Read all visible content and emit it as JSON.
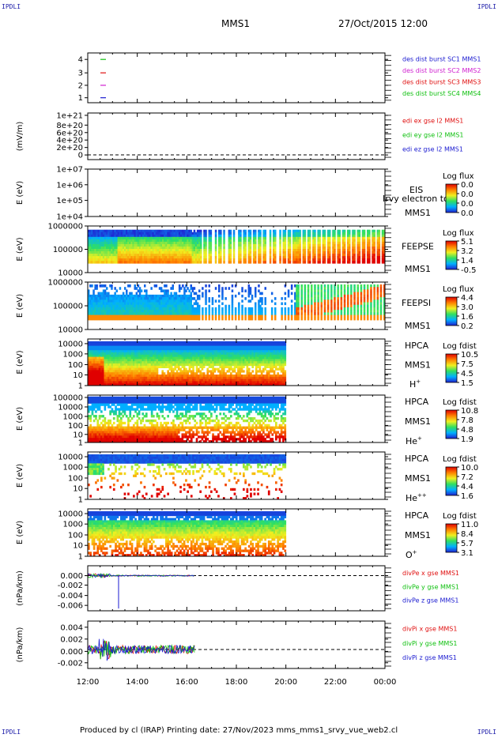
{
  "corner_label": "IPDLI",
  "header": {
    "mission": "MMS1",
    "datetime": "27/Oct/2015 12:00"
  },
  "footer": {
    "text": "Produced by cl (IRAP)   Printing date: 27/Nov/2023   mms_mms1_srvy_vue_web2.cl"
  },
  "chart_data": {
    "type": "heatmap",
    "x_tick_labels": [
      "12:00",
      "14:00",
      "16:00",
      "18:00",
      "20:00",
      "22:00",
      "00:00"
    ],
    "panels": [
      {
        "id": "burst",
        "type": "line",
        "ytick_labels": [
          "4",
          "3",
          "2",
          "1"
        ],
        "series": [
          {
            "name": "des dist burst SC1 MMS1",
            "color": "#1a1ad0"
          },
          {
            "name": "des dist burst SC2 MMS2",
            "color": "#d020d0"
          },
          {
            "name": "des dist burst SC3 MMS3",
            "color": "#e01010"
          },
          {
            "name": "des dist burst SC4 MMS4",
            "color": "#10c010"
          }
        ]
      },
      {
        "id": "edi",
        "type": "line",
        "ylabel": "(mV/m)",
        "ytick_labels": [
          "1e+21",
          "8e+20",
          "6e+20",
          "4e+20",
          "2e+20",
          "0"
        ],
        "series": [
          {
            "name": "edi ex gse l2 MMS1",
            "color": "#e01010"
          },
          {
            "name": "edi ey gse l2 MMS1",
            "color": "#10c010"
          },
          {
            "name": "edi ez gse l2 MMS1",
            "color": "#1a1ad0"
          }
        ]
      },
      {
        "id": "eis",
        "type": "heatmap",
        "ylabel": "E (eV)",
        "ytick_labels": [
          "1e+07",
          "1e+06",
          "1e+05",
          "1e+04"
        ],
        "instrument": "EIS",
        "species": "Irvy electron to",
        "spacecraft": "MMS1",
        "colorbar": {
          "title": "Log flux",
          "ticks": [
            "0.0",
            "0.0",
            "0.0",
            "0.0"
          ]
        }
      },
      {
        "id": "feepse",
        "type": "heatmap",
        "ylabel": "E (eV)",
        "ytick_labels": [
          "1000000",
          "100000",
          "10000"
        ],
        "instrument": "FEEPSE",
        "spacecraft": "MMS1",
        "colorbar": {
          "title": "Log flux",
          "ticks": [
            "5.1",
            "3.2",
            "1.4",
            "-0.5"
          ]
        }
      },
      {
        "id": "feepsi",
        "type": "heatmap",
        "ylabel": "E (eV)",
        "ytick_labels": [
          "1000000",
          "100000",
          "10000"
        ],
        "instrument": "FEEPSI",
        "spacecraft": "MMS1",
        "colorbar": {
          "title": "Log flux",
          "ticks": [
            "4.4",
            "3.0",
            "1.6",
            "0.2"
          ]
        }
      },
      {
        "id": "hpca_h",
        "type": "heatmap",
        "ylabel": "E (eV)",
        "ytick_labels": [
          "10000",
          "1000",
          "100",
          "10",
          "1"
        ],
        "instrument": "HPCA",
        "spacecraft": "MMS1",
        "species": "H",
        "species_sup": "+",
        "colorbar": {
          "title": "Log fdist",
          "ticks": [
            "10.5",
            "7.5",
            "4.5",
            "1.5"
          ]
        }
      },
      {
        "id": "hpca_he",
        "type": "heatmap",
        "ylabel": "E (eV)",
        "ytick_labels": [
          "100000",
          "10000",
          "1000",
          "100",
          "10",
          "1"
        ],
        "instrument": "HPCA",
        "spacecraft": "MMS1",
        "species": "He",
        "species_sup": "+",
        "colorbar": {
          "title": "Log fdist",
          "ticks": [
            "10.8",
            "7.8",
            "4.8",
            "1.9"
          ]
        }
      },
      {
        "id": "hpca_hepp",
        "type": "heatmap",
        "ylabel": "E (eV)",
        "ytick_labels": [
          "10000",
          "1000",
          "100",
          "10",
          "1"
        ],
        "instrument": "HPCA",
        "spacecraft": "MMS1",
        "species": "He",
        "species_sup": "++",
        "colorbar": {
          "title": "Log fdist",
          "ticks": [
            "10.0",
            "7.2",
            "4.4",
            "1.6"
          ]
        }
      },
      {
        "id": "hpca_o",
        "type": "heatmap",
        "ylabel": "E (eV)",
        "ytick_labels": [
          "10000",
          "1000",
          "100",
          "10",
          "1"
        ],
        "instrument": "HPCA",
        "spacecraft": "MMS1",
        "species": "O",
        "species_sup": "+",
        "colorbar": {
          "title": "Log fdist",
          "ticks": [
            "11.0",
            "8.4",
            "5.7",
            "3.1"
          ]
        }
      },
      {
        "id": "divpe",
        "type": "line",
        "ylabel": "(nPa/km)",
        "ytick_labels": [
          "0.000",
          "-0.002",
          "-0.004",
          "-0.006"
        ],
        "series": [
          {
            "name": "divPe x gse MMS1",
            "color": "#e01010"
          },
          {
            "name": "divPe y gse MMS1",
            "color": "#10c010"
          },
          {
            "name": "divPe z gse MMS1",
            "color": "#1a1ad0"
          }
        ]
      },
      {
        "id": "divpi",
        "type": "line",
        "ylabel": "(nPa/km)",
        "ytick_labels": [
          "0.004",
          "0.002",
          "0.000",
          "-0.002"
        ],
        "series": [
          {
            "name": "divPi x gse MMS1",
            "color": "#e01010"
          },
          {
            "name": "divPi y gse MMS1",
            "color": "#10c010"
          },
          {
            "name": "divPi z gse MMS1",
            "color": "#1a1ad0"
          }
        ]
      }
    ]
  }
}
